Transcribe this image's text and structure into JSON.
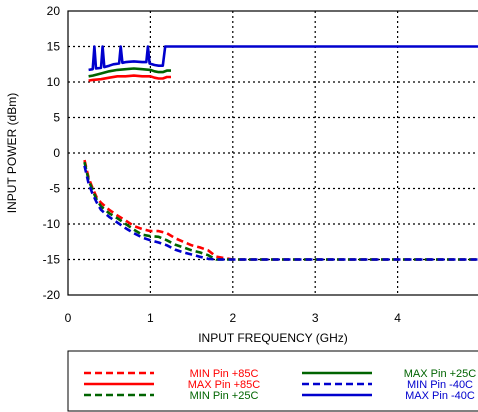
{
  "chart_data": {
    "type": "line",
    "xlabel": "INPUT FREQUENCY (GHz)",
    "ylabel": "INPUT POWER (dBm)",
    "xlim": [
      0,
      5
    ],
    "ylim": [
      -20,
      20
    ],
    "x_ticks": [
      "0",
      "1",
      "2",
      "3",
      "4"
    ],
    "y_ticks": [
      "20",
      "15",
      "10",
      "5",
      "0",
      "-5",
      "-10",
      "-15",
      "-20"
    ],
    "grid": true,
    "legend_placement": "bottom",
    "series": [
      {
        "name": "MIN Pin +85C",
        "color": "#ff0000",
        "style": "dashed",
        "x": [
          0.2,
          0.25,
          0.3,
          0.35,
          0.4,
          0.5,
          0.6,
          0.7,
          0.8,
          0.9,
          1.0,
          1.1,
          1.2,
          1.3,
          1.4,
          1.5,
          1.6,
          1.7,
          1.8,
          2.0,
          3.0,
          4.0,
          5.0
        ],
        "values": [
          -1.0,
          -3.5,
          -5.0,
          -6.3,
          -7.0,
          -8.0,
          -8.8,
          -9.5,
          -10.3,
          -10.7,
          -11.0,
          -11.0,
          -11.3,
          -12.0,
          -12.5,
          -13.0,
          -13.3,
          -13.7,
          -14.6,
          -15.0,
          -15.0,
          -15.0,
          -15.0
        ]
      },
      {
        "name": "MAX Pin +85C",
        "color": "#ff0000",
        "style": "solid",
        "x": [
          0.25,
          0.3,
          0.4,
          0.5,
          0.6,
          0.7,
          0.8,
          0.9,
          1.0,
          1.05,
          1.1,
          1.15,
          1.2,
          1.25
        ],
        "values": [
          10.2,
          10.3,
          10.4,
          10.6,
          10.8,
          10.8,
          10.9,
          10.8,
          10.8,
          10.6,
          10.5,
          10.5,
          10.7,
          10.7
        ]
      },
      {
        "name": "MIN Pin +25C",
        "color": "#006400",
        "style": "dashed",
        "x": [
          0.2,
          0.25,
          0.3,
          0.35,
          0.4,
          0.5,
          0.6,
          0.7,
          0.8,
          0.9,
          1.0,
          1.1,
          1.2,
          1.3,
          1.4,
          1.5,
          1.6,
          1.7,
          1.8,
          2.0,
          3.0,
          4.0,
          5.0
        ],
        "values": [
          -1.3,
          -3.8,
          -5.3,
          -6.6,
          -7.5,
          -8.5,
          -9.2,
          -10.0,
          -10.8,
          -11.5,
          -11.7,
          -11.8,
          -12.3,
          -12.9,
          -13.3,
          -13.7,
          -14.0,
          -14.4,
          -15.0,
          -15.0,
          -15.0,
          -15.0,
          -15.0
        ]
      },
      {
        "name": "MAX Pin +25C",
        "color": "#006400",
        "style": "solid",
        "x": [
          0.25,
          0.3,
          0.4,
          0.5,
          0.6,
          0.7,
          0.8,
          0.9,
          1.0,
          1.05,
          1.1,
          1.15,
          1.2,
          1.25
        ],
        "values": [
          10.8,
          10.9,
          11.2,
          11.5,
          11.7,
          11.8,
          11.9,
          11.8,
          11.7,
          11.5,
          11.4,
          11.4,
          11.6,
          11.6
        ]
      },
      {
        "name": "MIN Pin -40C",
        "color": "#0000cd",
        "style": "dashed",
        "x": [
          0.2,
          0.25,
          0.3,
          0.35,
          0.4,
          0.5,
          0.6,
          0.7,
          0.8,
          0.9,
          1.0,
          1.1,
          1.2,
          1.3,
          1.4,
          1.5,
          1.6,
          1.7,
          1.8,
          2.0,
          3.0,
          4.0,
          5.0
        ],
        "values": [
          -1.8,
          -4.3,
          -5.8,
          -7.0,
          -8.0,
          -9.0,
          -9.8,
          -10.6,
          -11.3,
          -11.9,
          -12.3,
          -12.6,
          -13.0,
          -13.6,
          -14.0,
          -14.3,
          -14.6,
          -14.9,
          -15.0,
          -15.0,
          -15.0,
          -15.0,
          -15.0
        ]
      },
      {
        "name": "MAX Pin -40C",
        "color": "#0000cd",
        "style": "solid",
        "x": [
          0.25,
          0.3,
          0.32,
          0.34,
          0.4,
          0.42,
          0.44,
          0.5,
          0.55,
          0.62,
          0.64,
          0.66,
          0.7,
          0.8,
          0.9,
          0.95,
          0.97,
          0.99,
          1.05,
          1.1,
          1.15,
          1.18,
          1.2,
          1.22,
          1.25,
          2.0,
          3.0,
          4.0,
          5.0
        ],
        "values": [
          11.7,
          11.8,
          15.0,
          11.9,
          12.0,
          15.0,
          12.1,
          12.3,
          12.5,
          12.6,
          15.0,
          12.7,
          12.8,
          12.9,
          12.8,
          12.8,
          15.0,
          12.6,
          12.4,
          12.3,
          12.3,
          15.0,
          15.0,
          15.0,
          15.0,
          15.0,
          15.0,
          15.0,
          15.0
        ]
      }
    ]
  }
}
